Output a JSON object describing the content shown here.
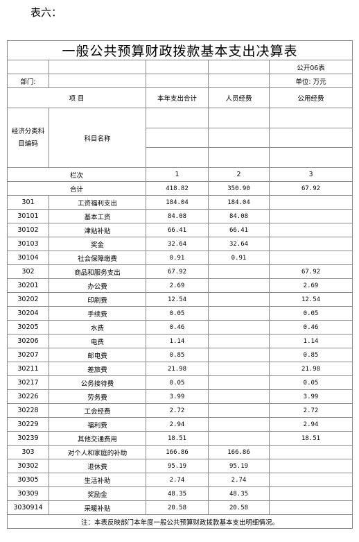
{
  "prefix": "表六：",
  "title": "一般公共预算财政拨款基本支出决算表",
  "form_no": "公开06表",
  "dept_label": "部门:",
  "unit_label": "单位: 万元",
  "headers": {
    "item": "项        目",
    "total": "本年支出合计",
    "personnel": "人员经费",
    "public": "公用经费",
    "econ_code": "经济分类科目编码",
    "subject_name": "科目名称",
    "column_no": "栏次",
    "col1": "1",
    "col2": "2",
    "col3": "3",
    "sum_label": "合计"
  },
  "sum_row": {
    "total": "418.82",
    "personnel": "350.90",
    "public": "67.92"
  },
  "rows": [
    {
      "code": "301",
      "name": "工资福利支出",
      "total": "184.04",
      "personnel": "184.04",
      "public": ""
    },
    {
      "code": "30101",
      "name": "基本工资",
      "total": "84.08",
      "personnel": "84.08",
      "public": ""
    },
    {
      "code": "30102",
      "name": "津贴补贴",
      "total": "66.41",
      "personnel": "66.41",
      "public": ""
    },
    {
      "code": "30103",
      "name": "奖金",
      "total": "32.64",
      "personnel": "32.64",
      "public": ""
    },
    {
      "code": "30104",
      "name": "社会保障缴费",
      "total": "0.91",
      "personnel": "0.91",
      "public": ""
    },
    {
      "code": "302",
      "name": "商品和服务支出",
      "total": "67.92",
      "personnel": "",
      "public": "67.92"
    },
    {
      "code": "30201",
      "name": "办公费",
      "total": "2.69",
      "personnel": "",
      "public": "2.69"
    },
    {
      "code": "30202",
      "name": "印刷费",
      "total": "12.54",
      "personnel": "",
      "public": "12.54"
    },
    {
      "code": "30204",
      "name": "手续费",
      "total": "0.05",
      "personnel": "",
      "public": "0.05"
    },
    {
      "code": "30205",
      "name": "水费",
      "total": "0.46",
      "personnel": "",
      "public": "0.46"
    },
    {
      "code": "30206",
      "name": "电费",
      "total": "1.14",
      "personnel": "",
      "public": "1.14"
    },
    {
      "code": "30207",
      "name": "邮电费",
      "total": "0.85",
      "personnel": "",
      "public": "0.85"
    },
    {
      "code": "30211",
      "name": "差旅费",
      "total": "21.98",
      "personnel": "",
      "public": "21.98"
    },
    {
      "code": "30217",
      "name": "公务接待费",
      "total": "0.05",
      "personnel": "",
      "public": "0.05"
    },
    {
      "code": "30226",
      "name": "劳务费",
      "total": "3.99",
      "personnel": "",
      "public": "3.99"
    },
    {
      "code": "30228",
      "name": "工会经费",
      "total": "2.72",
      "personnel": "",
      "public": "2.72"
    },
    {
      "code": "30229",
      "name": "福利费",
      "total": "2.94",
      "personnel": "",
      "public": "2.94"
    },
    {
      "code": "30239",
      "name": "其他交通费用",
      "total": "18.51",
      "personnel": "",
      "public": "18.51"
    },
    {
      "code": "303",
      "name": "对个人和家庭的补助",
      "total": "166.86",
      "personnel": "166.86",
      "public": ""
    },
    {
      "code": "30302",
      "name": "退休费",
      "total": "95.19",
      "personnel": "95.19",
      "public": ""
    },
    {
      "code": "30305",
      "name": "生活补助",
      "total": "2.74",
      "personnel": "2.74",
      "public": ""
    },
    {
      "code": "30309",
      "name": "奖励金",
      "total": "48.35",
      "personnel": "48.35",
      "public": ""
    },
    {
      "code": "3030914",
      "name": "采暖补贴",
      "total": "20.58",
      "personnel": "20.58",
      "public": ""
    }
  ],
  "note": "注：本表反映部门本年度一般公共预算财政拨款基本支出明细情况。"
}
